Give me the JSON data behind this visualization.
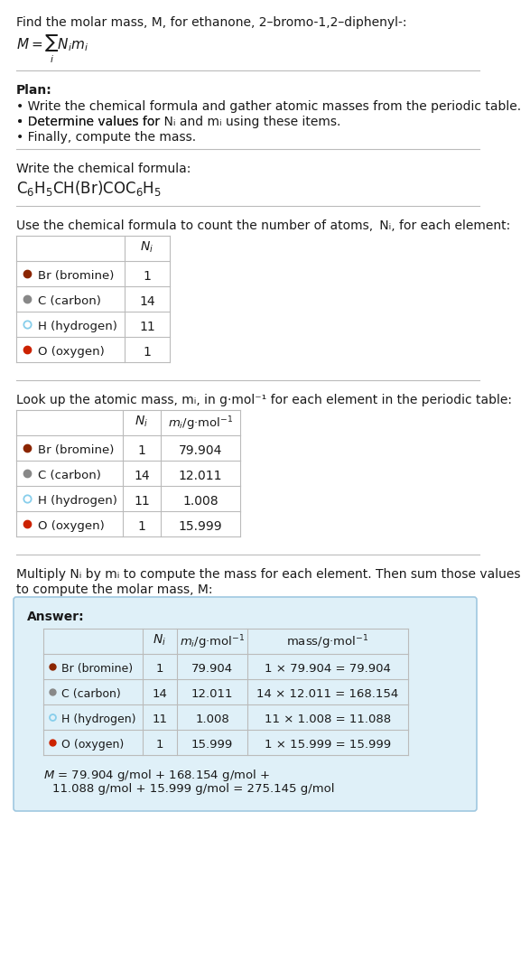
{
  "title_line": "Find the molar mass, M, for ethanone, 2–bromo-1,2–diphenyl-:",
  "plan_header": "Plan:",
  "plan_bullets": [
    "• Write the chemical formula and gather atomic masses from the periodic table.",
    "• Determine values for N_i and m_i using these items.",
    "• Finally, compute the mass."
  ],
  "chem_formula_header": "Write the chemical formula:",
  "count_header": "Use the chemical formula to count the number of atoms, N_i, for each element:",
  "mass_header": "Look up the atomic mass, m_i, in g·mol⁻¹ for each element in the periodic table:",
  "multiply_header_line1": "Multiply N_i by m_i to compute the mass for each element. Then sum those values",
  "multiply_header_line2": "to compute the molar mass, M:",
  "answer_label": "Answer:",
  "elements": [
    "Br (bromine)",
    "C (carbon)",
    "H (hydrogen)",
    "O (oxygen)"
  ],
  "dot_colors": [
    "#8b2500",
    "#888888",
    "#87ceeb",
    "#cc2200"
  ],
  "dot_filled": [
    true,
    true,
    false,
    true
  ],
  "Ni": [
    1,
    14,
    11,
    1
  ],
  "mi": [
    79.904,
    12.011,
    1.008,
    15.999
  ],
  "mass_exprs": [
    "1 × 79.904 = 79.904",
    "14 × 12.011 = 168.154",
    "11 × 1.008 = 11.088",
    "1 × 15.999 = 15.999"
  ],
  "final_eq_line1": "M = 79.904 g/mol + 168.154 g/mol +",
  "final_eq_line2": "    11.088 g/mol + 15.999 g/mol = 275.145 g/mol",
  "bg_color": "#ffffff",
  "answer_box_color": "#dff0f8",
  "answer_box_border": "#a0c8e0",
  "separator_color": "#bbbbbb",
  "text_color": "#1a1a1a",
  "table_border_color": "#bbbbbb",
  "font_size": 10.0
}
